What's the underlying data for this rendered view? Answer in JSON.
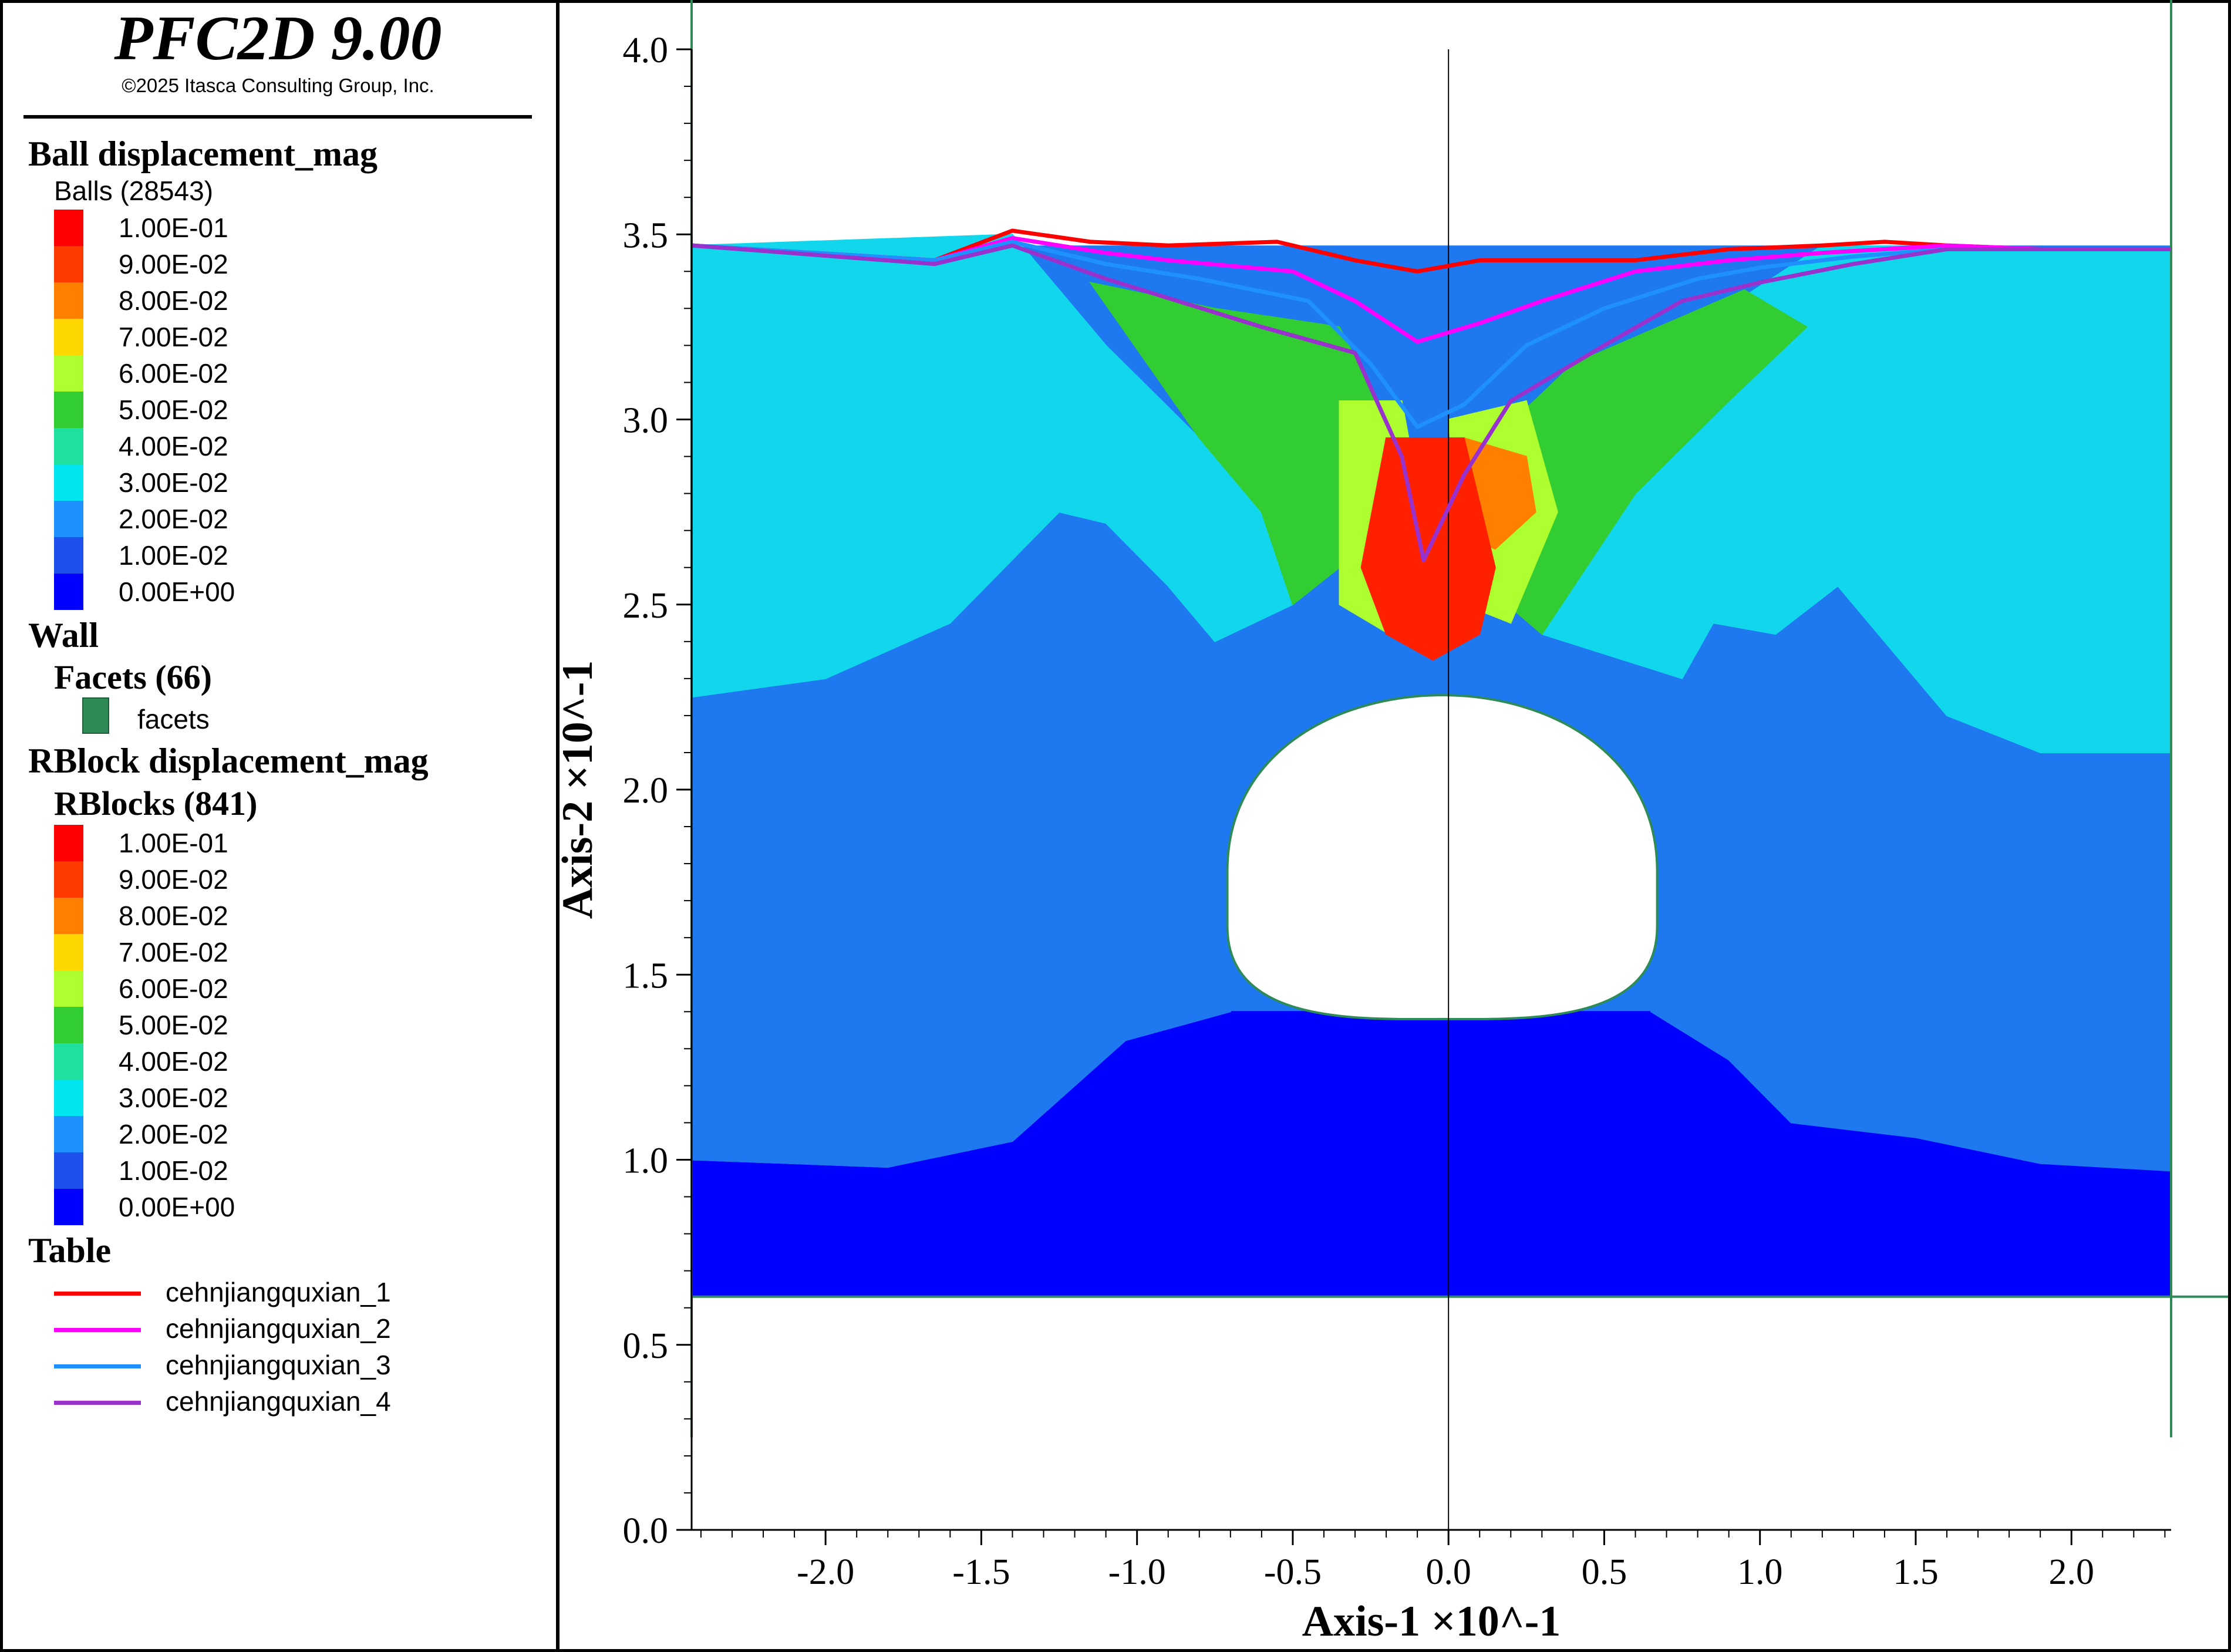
{
  "app": {
    "title": "PFC2D 9.00",
    "copyright": "©2025 Itasca Consulting Group, Inc."
  },
  "legend": {
    "ball": {
      "heading": "Ball displacement_mag",
      "subheading": "Balls (28543)",
      "entries": [
        {
          "label": "1.00E-01",
          "color": "#ff0000"
        },
        {
          "label": "9.00E-02",
          "color": "#ff3a00"
        },
        {
          "label": "8.00E-02",
          "color": "#ff7f00"
        },
        {
          "label": "7.00E-02",
          "color": "#ffd700"
        },
        {
          "label": "6.00E-02",
          "color": "#adff2f"
        },
        {
          "label": "5.00E-02",
          "color": "#32cd32"
        },
        {
          "label": "4.00E-02",
          "color": "#20e0a0"
        },
        {
          "label": "3.00E-02",
          "color": "#00e5ee"
        },
        {
          "label": "2.00E-02",
          "color": "#1e90ff"
        },
        {
          "label": "1.00E-02",
          "color": "#1e50ee"
        },
        {
          "label": "0.00E+00",
          "color": "#0000ff"
        }
      ]
    },
    "wall": {
      "heading": "Wall",
      "subheading": "Facets (66)",
      "facets_label": "facets",
      "color": "#2e8b57"
    },
    "rblock": {
      "heading": "RBlock displacement_mag",
      "subheading": "RBlocks (841)",
      "entries": [
        {
          "label": "1.00E-01",
          "color": "#ff0000"
        },
        {
          "label": "9.00E-02",
          "color": "#ff3a00"
        },
        {
          "label": "8.00E-02",
          "color": "#ff7f00"
        },
        {
          "label": "7.00E-02",
          "color": "#ffd700"
        },
        {
          "label": "6.00E-02",
          "color": "#adff2f"
        },
        {
          "label": "5.00E-02",
          "color": "#32cd32"
        },
        {
          "label": "4.00E-02",
          "color": "#20e0a0"
        },
        {
          "label": "3.00E-02",
          "color": "#00e5ee"
        },
        {
          "label": "2.00E-02",
          "color": "#1e90ff"
        },
        {
          "label": "1.00E-02",
          "color": "#1e50ee"
        },
        {
          "label": "0.00E+00",
          "color": "#0000ff"
        }
      ]
    },
    "table": {
      "heading": "Table",
      "entries": [
        {
          "label": "cehnjiangquxian_1",
          "color": "#ff0000"
        },
        {
          "label": "cehnjiangquxian_2",
          "color": "#ff00ff"
        },
        {
          "label": "cehnjiangquxian_3",
          "color": "#1e90ff"
        },
        {
          "label": "cehnjiangquxian_4",
          "color": "#9932cc"
        }
      ]
    }
  },
  "chart_data": {
    "type": "line",
    "xlabel": "Axis-1 ×10^-1",
    "ylabel": "Axis-2 ×10^-1",
    "xlim": [
      -2.43,
      2.32
    ],
    "ylim": [
      0.0,
      4.0
    ],
    "xticks": [
      -2.0,
      -1.5,
      -1.0,
      -0.5,
      0.0,
      0.5,
      1.0,
      1.5,
      2.0
    ],
    "xtick_labels": [
      "-2.0",
      "-1.5",
      "-1.0",
      "-0.5",
      "0.0",
      "0.5",
      "1.0",
      "1.5",
      "2.0"
    ],
    "yticks": [
      0.0,
      0.5,
      1.0,
      1.5,
      2.0,
      2.5,
      3.0,
      3.5,
      4.0
    ],
    "ytick_labels": [
      "0.0",
      "0.5",
      "1.0",
      "1.5",
      "2.0",
      "2.5",
      "3.0",
      "3.5",
      "4.0"
    ],
    "model_domain": {
      "xmin": -2.43,
      "xmax": 2.32,
      "ymin": 0.63,
      "ymax": 3.47
    },
    "wall_lines": {
      "x_left": -2.43,
      "x_right": 2.32,
      "y_bottom": 0.63,
      "y_min": 0.25
    },
    "tunnel": {
      "x_center": -0.02,
      "x_half_width": 0.69,
      "y_crown": 2.35,
      "y_springline": 1.78,
      "y_invert": 1.38
    },
    "regions": [
      {
        "color": "#0000ff",
        "points": [
          [
            -2.43,
            0.63
          ],
          [
            2.32,
            0.63
          ],
          [
            2.32,
            0.97
          ],
          [
            1.9,
            0.99
          ],
          [
            1.5,
            1.06
          ],
          [
            1.1,
            1.1
          ],
          [
            0.9,
            1.27
          ],
          [
            0.65,
            1.4
          ],
          [
            -0.7,
            1.4
          ],
          [
            -0.77,
            1.6
          ],
          [
            -1.0,
            1.35
          ],
          [
            -1.4,
            1.05
          ],
          [
            -1.8,
            0.98
          ],
          [
            -2.43,
            1.0
          ]
        ]
      },
      {
        "color": "#1e78f0",
        "points": [
          [
            -2.43,
            1.0
          ],
          [
            -1.8,
            0.98
          ],
          [
            -1.4,
            1.05
          ],
          [
            -1.0,
            1.35
          ],
          [
            -0.77,
            1.6
          ],
          [
            -0.7,
            2.2
          ],
          [
            -0.55,
            2.35
          ],
          [
            0.15,
            2.35
          ],
          [
            0.6,
            2.2
          ],
          [
            0.75,
            2.3
          ],
          [
            0.85,
            2.45
          ],
          [
            1.05,
            2.42
          ],
          [
            1.25,
            2.55
          ],
          [
            1.6,
            2.2
          ],
          [
            1.9,
            2.1
          ],
          [
            2.32,
            2.1
          ],
          [
            2.32,
            0.97
          ],
          [
            1.9,
            0.99
          ],
          [
            1.5,
            1.06
          ],
          [
            1.1,
            1.1
          ],
          [
            0.9,
            1.27
          ],
          [
            0.65,
            1.4
          ],
          [
            0.62,
            1.78
          ],
          [
            -0.7,
            1.78
          ],
          [
            -0.7,
            1.4
          ]
        ]
      },
      {
        "color": "#1e78f0",
        "points": [
          [
            -2.43,
            2.25
          ],
          [
            -2.0,
            2.3
          ],
          [
            -1.6,
            2.45
          ],
          [
            -1.25,
            2.75
          ],
          [
            -1.1,
            2.72
          ],
          [
            -0.9,
            2.55
          ],
          [
            -0.75,
            2.4
          ],
          [
            -0.7,
            1.6
          ],
          [
            -1.0,
            1.35
          ],
          [
            -1.4,
            1.05
          ],
          [
            -1.8,
            0.98
          ],
          [
            -2.43,
            1.0
          ]
        ]
      },
      {
        "color": "#12d6ec",
        "points": [
          [
            -2.43,
            3.47
          ],
          [
            -1.4,
            3.5
          ],
          [
            -1.1,
            3.2
          ],
          [
            -0.8,
            2.95
          ],
          [
            -0.6,
            2.75
          ],
          [
            -0.5,
            2.5
          ],
          [
            -0.75,
            2.4
          ],
          [
            -0.9,
            2.55
          ],
          [
            -1.1,
            2.72
          ],
          [
            -1.25,
            2.75
          ],
          [
            -1.6,
            2.45
          ],
          [
            -2.0,
            2.3
          ],
          [
            -2.43,
            2.25
          ]
        ]
      },
      {
        "color": "#12d6ec",
        "points": [
          [
            2.32,
            3.46
          ],
          [
            1.2,
            3.47
          ],
          [
            0.8,
            3.25
          ],
          [
            0.6,
            3.0
          ],
          [
            0.4,
            2.7
          ],
          [
            0.3,
            2.42
          ],
          [
            0.75,
            2.3
          ],
          [
            0.85,
            2.45
          ],
          [
            1.05,
            2.42
          ],
          [
            1.25,
            2.55
          ],
          [
            1.6,
            2.2
          ],
          [
            1.9,
            2.1
          ],
          [
            2.32,
            2.1
          ]
        ]
      },
      {
        "color": "#32cd32",
        "points": [
          [
            -1.15,
            3.37
          ],
          [
            -0.75,
            3.3
          ],
          [
            -0.35,
            3.25
          ],
          [
            -0.2,
            3.0
          ],
          [
            -0.2,
            2.7
          ],
          [
            -0.5,
            2.5
          ],
          [
            -0.6,
            2.75
          ],
          [
            -0.8,
            2.95
          ]
        ]
      },
      {
        "color": "#32cd32",
        "points": [
          [
            0.95,
            3.35
          ],
          [
            1.15,
            3.25
          ],
          [
            0.9,
            3.05
          ],
          [
            0.6,
            2.8
          ],
          [
            0.3,
            2.42
          ],
          [
            0.05,
            2.6
          ],
          [
            0.15,
            2.95
          ],
          [
            0.4,
            3.15
          ]
        ]
      },
      {
        "color": "#adff2f",
        "points": [
          [
            -0.35,
            3.05
          ],
          [
            -0.15,
            3.05
          ],
          [
            -0.05,
            2.6
          ],
          [
            -0.15,
            2.4
          ],
          [
            -0.35,
            2.5
          ]
        ]
      },
      {
        "color": "#adff2f",
        "points": [
          [
            0.0,
            3.0
          ],
          [
            0.25,
            3.05
          ],
          [
            0.35,
            2.75
          ],
          [
            0.2,
            2.45
          ],
          [
            0.05,
            2.5
          ]
        ]
      },
      {
        "color": "#ff7f00",
        "points": [
          [
            0.05,
            2.95
          ],
          [
            0.25,
            2.9
          ],
          [
            0.28,
            2.75
          ],
          [
            0.15,
            2.65
          ],
          [
            0.02,
            2.7
          ]
        ]
      },
      {
        "color": "#ff2000",
        "points": [
          [
            -0.2,
            2.95
          ],
          [
            0.05,
            2.95
          ],
          [
            0.15,
            2.6
          ],
          [
            0.1,
            2.42
          ],
          [
            -0.05,
            2.35
          ],
          [
            -0.2,
            2.42
          ],
          [
            -0.28,
            2.6
          ]
        ]
      }
    ],
    "series": [
      {
        "name": "cehnjiangquxian_1",
        "color": "#ff0000",
        "x": [
          -2.43,
          -1.65,
          -1.4,
          -1.15,
          -0.9,
          -0.55,
          -0.3,
          -0.1,
          0.1,
          0.3,
          0.6,
          0.9,
          1.2,
          1.4,
          1.6,
          1.9,
          2.32
        ],
        "y": [
          3.47,
          3.43,
          3.51,
          3.48,
          3.47,
          3.48,
          3.43,
          3.4,
          3.43,
          3.43,
          3.43,
          3.46,
          3.47,
          3.48,
          3.47,
          3.46,
          3.46
        ]
      },
      {
        "name": "cehnjiangquxian_2",
        "color": "#ff00ff",
        "x": [
          -2.43,
          -1.65,
          -1.4,
          -1.1,
          -0.9,
          -0.5,
          -0.3,
          -0.1,
          0.1,
          0.3,
          0.6,
          0.9,
          1.2,
          1.4,
          1.6,
          1.9,
          2.32
        ],
        "y": [
          3.47,
          3.43,
          3.49,
          3.45,
          3.43,
          3.4,
          3.32,
          3.21,
          3.26,
          3.32,
          3.4,
          3.43,
          3.45,
          3.46,
          3.47,
          3.46,
          3.46
        ]
      },
      {
        "name": "cehnjiangquxian_3",
        "color": "#1e90ff",
        "x": [
          -2.43,
          -1.65,
          -1.4,
          -1.1,
          -0.8,
          -0.45,
          -0.25,
          -0.1,
          0.05,
          0.25,
          0.5,
          0.8,
          1.0,
          1.3,
          1.6,
          1.9,
          2.32
        ],
        "y": [
          3.47,
          3.43,
          3.48,
          3.42,
          3.38,
          3.32,
          3.15,
          2.98,
          3.04,
          3.2,
          3.3,
          3.38,
          3.41,
          3.44,
          3.46,
          3.46,
          3.46
        ]
      },
      {
        "name": "cehnjiangquxian_4",
        "color": "#9932cc",
        "x": [
          -2.43,
          -1.65,
          -1.4,
          -1.1,
          -0.6,
          -0.3,
          -0.15,
          -0.08,
          0.05,
          0.2,
          0.5,
          0.75,
          1.0,
          1.3,
          1.6,
          1.9,
          2.32
        ],
        "y": [
          3.47,
          3.42,
          3.47,
          3.38,
          3.25,
          3.18,
          2.9,
          2.62,
          2.85,
          3.05,
          3.2,
          3.32,
          3.37,
          3.42,
          3.46,
          3.46,
          3.46
        ]
      }
    ]
  }
}
